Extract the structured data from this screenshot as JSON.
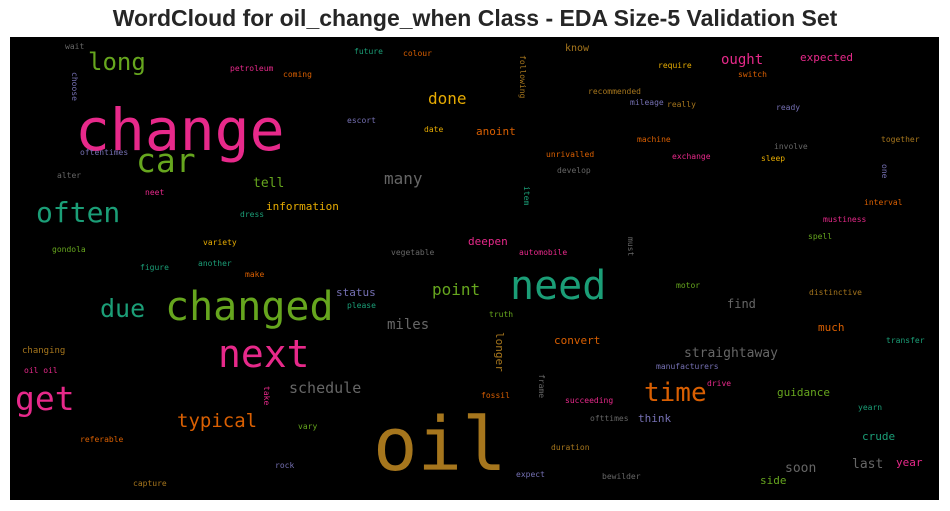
{
  "chart_data": {
    "type": "wordcloud",
    "title": "WordCloud for oil_change_when Class - EDA Size-5 Validation Set",
    "background": "#000000",
    "palette": [
      "#1b9e77",
      "#d95f02",
      "#7570b3",
      "#e7298a",
      "#66a61e",
      "#e6ab02",
      "#a6761d",
      "#666666"
    ],
    "words": [
      {
        "text": "oil",
        "color": "#a6761d"
      },
      {
        "text": "change",
        "color": "#e7298a"
      },
      {
        "text": "need",
        "color": "#1b9e77"
      },
      {
        "text": "changed",
        "color": "#66a61e"
      },
      {
        "text": "next",
        "color": "#e7298a"
      },
      {
        "text": "car",
        "color": "#66a61e"
      },
      {
        "text": "often",
        "color": "#1b9e77"
      },
      {
        "text": "get",
        "color": "#e7298a"
      },
      {
        "text": "time",
        "color": "#d95f02"
      },
      {
        "text": "due",
        "color": "#1b9e77"
      },
      {
        "text": "long",
        "color": "#66a61e"
      },
      {
        "text": "typical",
        "color": "#d95f02"
      },
      {
        "text": "done",
        "color": "#e6ab02"
      },
      {
        "text": "many",
        "color": "#666666"
      },
      {
        "text": "point",
        "color": "#66a61e"
      },
      {
        "text": "miles",
        "color": "#666666"
      },
      {
        "text": "schedule",
        "color": "#666666"
      },
      {
        "text": "straightaway",
        "color": "#666666"
      },
      {
        "text": "ought",
        "color": "#e7298a"
      },
      {
        "text": "tell",
        "color": "#66a61e"
      },
      {
        "text": "soon",
        "color": "#666666"
      },
      {
        "text": "last",
        "color": "#666666"
      },
      {
        "text": "status",
        "color": "#7570b3"
      },
      {
        "text": "information",
        "color": "#e6ab02"
      },
      {
        "text": "find",
        "color": "#666666"
      },
      {
        "text": "guidance",
        "color": "#66a61e"
      },
      {
        "text": "much",
        "color": "#d95f02"
      },
      {
        "text": "crude",
        "color": "#1b9e77"
      },
      {
        "text": "year",
        "color": "#e7298a"
      },
      {
        "text": "expected",
        "color": "#e7298a"
      },
      {
        "text": "convert",
        "color": "#d95f02"
      },
      {
        "text": "anoint",
        "color": "#d95f02"
      },
      {
        "text": "deepen",
        "color": "#e7298a"
      },
      {
        "text": "longer",
        "color": "#a6761d"
      },
      {
        "text": "think",
        "color": "#7570b3"
      },
      {
        "text": "side",
        "color": "#66a61e"
      },
      {
        "text": "know",
        "color": "#a6761d"
      },
      {
        "text": "wait",
        "color": "#666666"
      },
      {
        "text": "choose",
        "color": "#7570b3"
      },
      {
        "text": "petroleum",
        "color": "#e7298a"
      },
      {
        "text": "coming",
        "color": "#d95f02"
      },
      {
        "text": "future",
        "color": "#1b9e77"
      },
      {
        "text": "colour",
        "color": "#d95f02"
      },
      {
        "text": "following",
        "color": "#a6761d"
      },
      {
        "text": "require",
        "color": "#e6ab02"
      },
      {
        "text": "switch",
        "color": "#d95f02"
      },
      {
        "text": "recommended",
        "color": "#a6761d"
      },
      {
        "text": "mileage",
        "color": "#7570b3"
      },
      {
        "text": "really",
        "color": "#a6761d"
      },
      {
        "text": "ready",
        "color": "#7570b3"
      },
      {
        "text": "escort",
        "color": "#7570b3"
      },
      {
        "text": "date",
        "color": "#e6ab02"
      },
      {
        "text": "machine",
        "color": "#d95f02"
      },
      {
        "text": "together",
        "color": "#a6761d"
      },
      {
        "text": "oftentimes",
        "color": "#7570b3"
      },
      {
        "text": "unrivalled",
        "color": "#d95f02"
      },
      {
        "text": "involve",
        "color": "#666666"
      },
      {
        "text": "exchange",
        "color": "#e7298a"
      },
      {
        "text": "sleep",
        "color": "#e6ab02"
      },
      {
        "text": "alter",
        "color": "#666666"
      },
      {
        "text": "develop",
        "color": "#666666"
      },
      {
        "text": "one",
        "color": "#7570b3"
      },
      {
        "text": "neet",
        "color": "#e7298a"
      },
      {
        "text": "dress",
        "color": "#1b9e77"
      },
      {
        "text": "item",
        "color": "#1b9e77"
      },
      {
        "text": "interval",
        "color": "#d95f02"
      },
      {
        "text": "mustiness",
        "color": "#e7298a"
      },
      {
        "text": "gondola",
        "color": "#66a61e"
      },
      {
        "text": "variety",
        "color": "#e6ab02"
      },
      {
        "text": "vegetable",
        "color": "#666666"
      },
      {
        "text": "automobile",
        "color": "#e7298a"
      },
      {
        "text": "must",
        "color": "#666666"
      },
      {
        "text": "spell",
        "color": "#66a61e"
      },
      {
        "text": "figure",
        "color": "#1b9e77"
      },
      {
        "text": "another",
        "color": "#1b9e77"
      },
      {
        "text": "make",
        "color": "#d95f02"
      },
      {
        "text": "motor",
        "color": "#66a61e"
      },
      {
        "text": "distinctive",
        "color": "#a6761d"
      },
      {
        "text": "please",
        "color": "#1b9e77"
      },
      {
        "text": "changing",
        "color": "#a6761d"
      },
      {
        "text": "truth",
        "color": "#66a61e"
      },
      {
        "text": "transfer",
        "color": "#1b9e77"
      },
      {
        "text": "oil oil",
        "color": "#e7298a"
      },
      {
        "text": "manufacturers",
        "color": "#7570b3"
      },
      {
        "text": "take",
        "color": "#e7298a"
      },
      {
        "text": "fossil",
        "color": "#d95f02"
      },
      {
        "text": "frame",
        "color": "#666666"
      },
      {
        "text": "succeeding",
        "color": "#e7298a"
      },
      {
        "text": "ofttimes",
        "color": "#666666"
      },
      {
        "text": "drive",
        "color": "#e7298a"
      },
      {
        "text": "yearn",
        "color": "#1b9e77"
      },
      {
        "text": "referable",
        "color": "#d95f02"
      },
      {
        "text": "vary",
        "color": "#66a61e"
      },
      {
        "text": "duration",
        "color": "#a6761d"
      },
      {
        "text": "rock",
        "color": "#7570b3"
      },
      {
        "text": "expect",
        "color": "#7570b3"
      },
      {
        "text": "bewilder",
        "color": "#666666"
      },
      {
        "text": "capture",
        "color": "#a6761d"
      }
    ]
  }
}
